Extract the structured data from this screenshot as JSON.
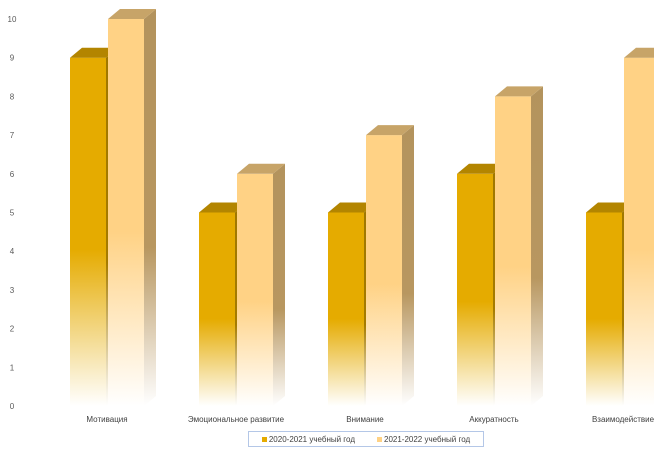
{
  "chart_data": {
    "type": "bar",
    "title": "",
    "xlabel": "",
    "ylabel": "",
    "categories": [
      "Мотивация",
      "Эмоциональное развитие",
      "Внимание",
      "Аккуратность",
      "Взаимодействие"
    ],
    "series": [
      {
        "name": "2020-2021 учебный год",
        "values": [
          9,
          5,
          5,
          6,
          5
        ],
        "color": "#e5ab00"
      },
      {
        "name": "2021-2022 учебный год",
        "values": [
          10,
          6,
          7,
          8,
          9
        ],
        "color": "#ffd285"
      }
    ],
    "ylim": [
      0,
      10
    ],
    "yticks": [
      "0",
      "1",
      "2",
      "3",
      "4",
      "5",
      "6",
      "7",
      "8",
      "9",
      "10"
    ],
    "grid": false,
    "legend_position": "bottom",
    "style": "3d-column-gradient"
  }
}
